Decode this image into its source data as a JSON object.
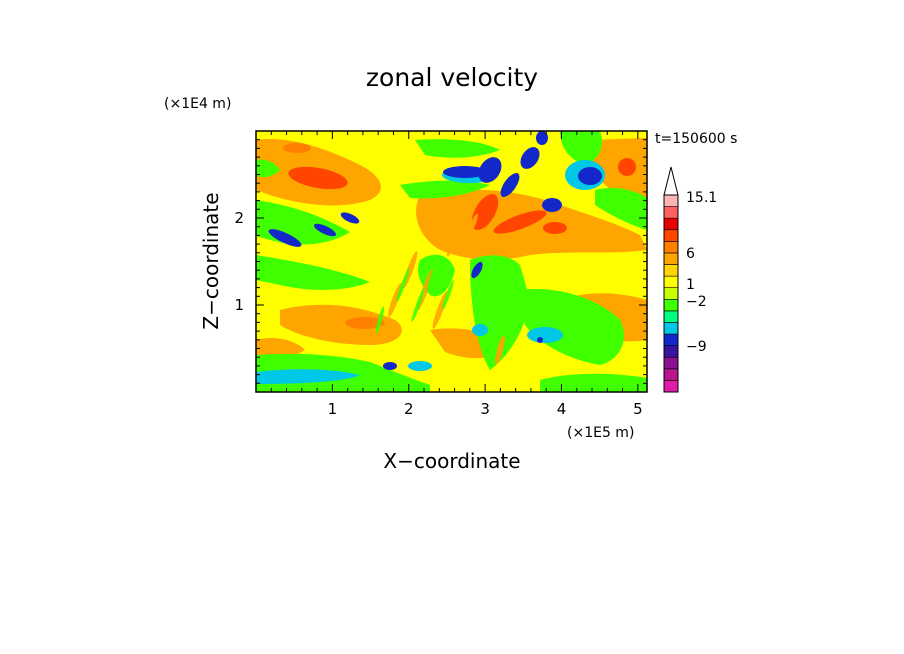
{
  "chart_data": {
    "type": "heatmap",
    "title": "zonal velocity",
    "xlabel": "X−coordinate",
    "ylabel": "Z−coordinate",
    "x_unit": "(×1E5 m)",
    "y_unit": "(×1E4 m)",
    "time_label": "t=150600 s",
    "xlim": [
      0,
      5.12
    ],
    "ylim": [
      0,
      3
    ],
    "x_ticks": [
      "1",
      "2",
      "3",
      "4",
      "5"
    ],
    "y_ticks": [
      "1",
      "2"
    ],
    "colorbar": {
      "labels": [
        "15.1",
        "6",
        "1",
        "−2",
        "−9"
      ],
      "colors": [
        "#e21ca8",
        "#b9158c",
        "#8c1090",
        "#3a12a0",
        "#1228c8",
        "#00c8e6",
        "#00ff80",
        "#40ff00",
        "#c8ff00",
        "#ffff00",
        "#ffd700",
        "#ffa500",
        "#ff8000",
        "#ff4500",
        "#e60000",
        "#ff6060",
        "#ffb4b4"
      ]
    },
    "colors": {
      "strong_positive": "#ff4500",
      "positive": "#ffa500",
      "weak_positive": "#ffff00",
      "near_zero": "#40ff00",
      "weak_negative": "#00c8e6",
      "negative": "#1228c8"
    }
  }
}
